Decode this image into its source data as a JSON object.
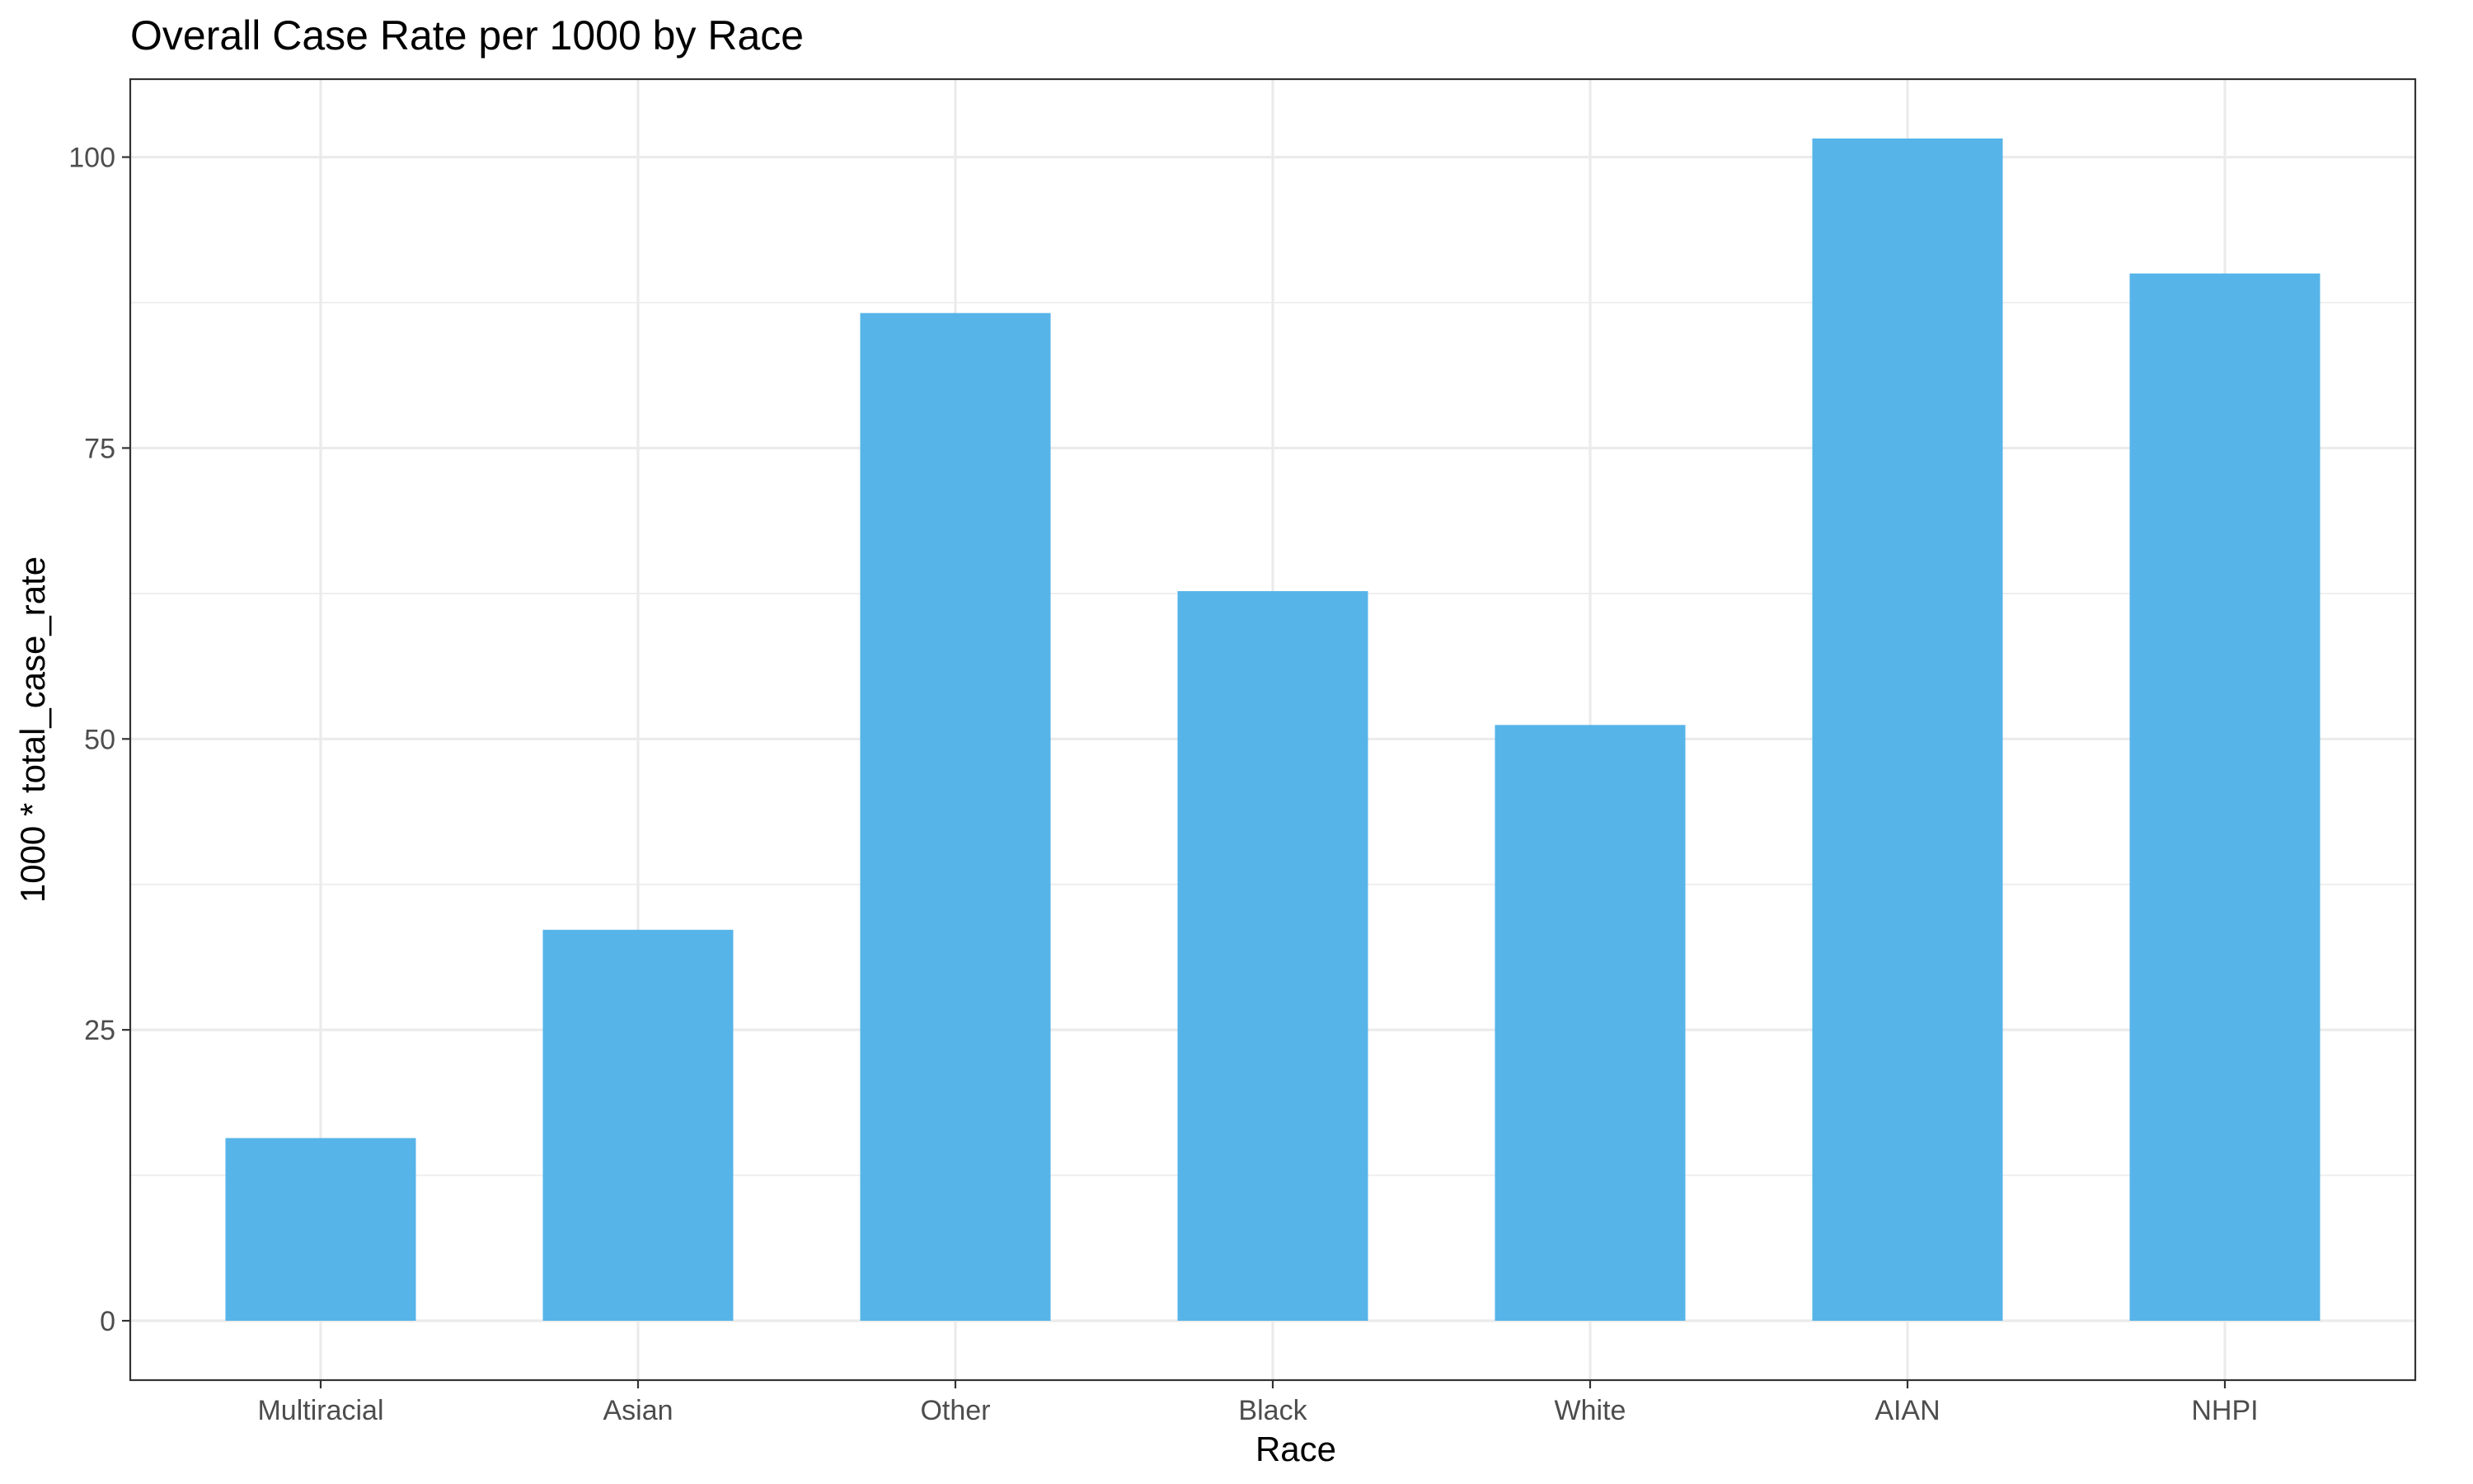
{
  "chart_data": {
    "type": "bar",
    "title": "Overall Case Rate per 1000 by Race",
    "xlabel": "Race",
    "ylabel": "1000 * total_case_rate",
    "categories": [
      "Multiracial",
      "Asian",
      "Other",
      "Black",
      "White",
      "AIAN",
      "NHPI"
    ],
    "values": [
      15.7,
      33.6,
      86.6,
      62.7,
      51.2,
      101.6,
      90.0
    ],
    "ylim": [
      -5.1,
      106.7
    ],
    "yticks": [
      0,
      25,
      50,
      75,
      100
    ],
    "ytick_labels": [
      "0",
      "25",
      "50",
      "75",
      "100"
    ],
    "grid": true,
    "legend": "none",
    "bar_color": "#56B4E9"
  }
}
